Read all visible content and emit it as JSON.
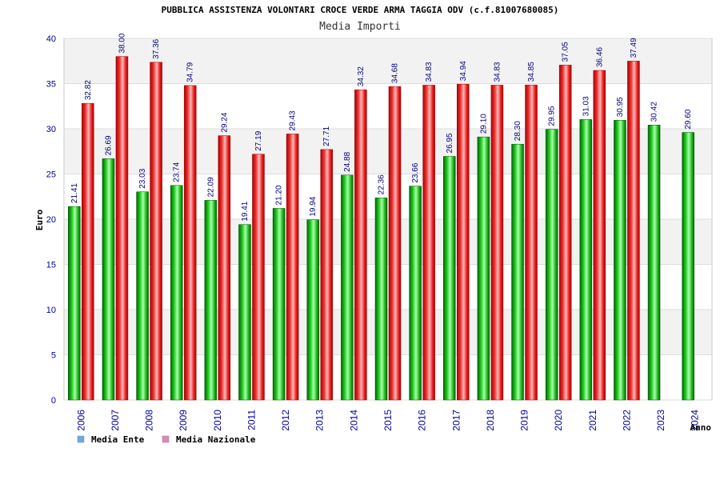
{
  "chart_data": {
    "type": "bar",
    "title": "PUBBLICA ASSISTENZA VOLONTARI CROCE VERDE ARMA TAGGIA ODV (c.f.81007680085)",
    "subtitle": "Media Importi",
    "xlabel": "Anno",
    "ylabel": "Euro",
    "ylim": [
      0,
      40
    ],
    "yticks": [
      0,
      5,
      10,
      15,
      20,
      25,
      30,
      35,
      40
    ],
    "grid": true,
    "legend_position": "bottom-left",
    "categories": [
      "2006",
      "2007",
      "2008",
      "2009",
      "2010",
      "2011",
      "2012",
      "2013",
      "2014",
      "2015",
      "2016",
      "2017",
      "2018",
      "2019",
      "2020",
      "2021",
      "2022",
      "2023",
      "2024"
    ],
    "series": [
      {
        "name": "Media Ente",
        "color": "#00aa00",
        "legend_color": "#66aaee",
        "values": [
          21.41,
          26.69,
          23.03,
          23.74,
          22.09,
          19.41,
          21.2,
          19.94,
          24.88,
          22.36,
          23.66,
          26.95,
          29.1,
          28.3,
          29.95,
          31.03,
          30.95,
          30.42,
          29.6
        ],
        "labels": [
          "21.41",
          "26.69",
          "23.03",
          "23.74",
          "22.09",
          "19.41",
          "21.20",
          "19.94",
          "24.88",
          "22.36",
          "23.66",
          "26.95",
          "29.10",
          "28.30",
          "29.95",
          "31.03",
          "30.95",
          "30.42",
          "29.60"
        ]
      },
      {
        "name": "Media Nazionale",
        "color": "#ee2222",
        "legend_color": "#dd88bb",
        "values": [
          32.82,
          38.0,
          37.36,
          34.79,
          29.24,
          27.19,
          29.43,
          27.71,
          34.32,
          34.68,
          34.83,
          34.94,
          34.83,
          34.85,
          37.05,
          36.46,
          37.49,
          null,
          null
        ],
        "labels": [
          "32.82",
          "38.00",
          "37.36",
          "34.79",
          "29.24",
          "27.19",
          "29.43",
          "27.71",
          "34.32",
          "34.68",
          "34.83",
          "34.94",
          "34.83",
          "34.85",
          "37.05",
          "36.46",
          "37.49",
          "",
          ""
        ]
      }
    ]
  }
}
